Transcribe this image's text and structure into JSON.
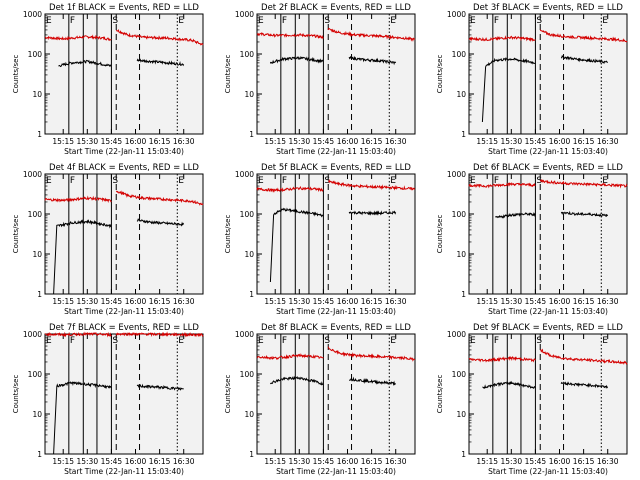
{
  "start_time_label": "Start Time (22-Jan-11 15:03:40)",
  "ylabel": "Counts/sec",
  "colors": {
    "events": "#000000",
    "lld": "#d40000",
    "background": "#ffffff",
    "plot_bg": "#f2f2f2"
  },
  "chart_data": {
    "type": "line",
    "grid": false,
    "x_axis": {
      "unit": "time (HH:MM, 22-Jan-11)",
      "range": [
        "15:03:40",
        "16:42:00"
      ],
      "ticks": [
        "15:15",
        "15:30",
        "15:45",
        "16:00",
        "16:15",
        "16:30"
      ]
    },
    "y_axis": {
      "scale": "log",
      "range": [
        1,
        1000
      ],
      "ticks": [
        "1",
        "10",
        "100",
        "1000"
      ]
    },
    "event_markers": [
      {
        "label": "E",
        "time": "15:03:40",
        "style": "solid"
      },
      {
        "label": "F",
        "time": "15:18:30",
        "style": "solid"
      },
      {
        "label": "",
        "time": "15:27:30",
        "style": "solid"
      },
      {
        "label": "",
        "time": "15:36:00",
        "style": "solid"
      },
      {
        "label": "S",
        "time": "15:45:00",
        "style": "solid"
      },
      {
        "label": "",
        "time": "15:48:00",
        "style": "dashed"
      },
      {
        "label": "",
        "time": "16:02:30",
        "style": "dashed"
      },
      {
        "label": "E",
        "time": "16:26:00",
        "style": "dotted"
      }
    ],
    "panels": [
      {
        "title": "Det 1f BLACK = Events, RED = LLD",
        "series": [
          {
            "name": "LLD",
            "segments": [
              {
                "x": [
                  "15:03:40",
                  "15:15",
                  "15:30",
                  "15:40",
                  "15:45:00"
                ],
                "y": [
                  260,
                  240,
                  270,
                  250,
                  230
                ]
              },
              {
                "x": [
                  "15:48:00",
                  "15:55",
                  "16:05",
                  "16:20",
                  "16:35",
                  "16:42"
                ],
                "y": [
                  400,
                  300,
                  260,
                  250,
                  220,
                  170
                ]
              }
            ]
          },
          {
            "name": "Events",
            "segments": [
              {
                "x": [
                  "15:12",
                  "15:20",
                  "15:30",
                  "15:40",
                  "15:45:00"
                ],
                "y": [
                  50,
                  60,
                  65,
                  55,
                  50
                ]
              },
              {
                "x": [
                  "16:01",
                  "16:10",
                  "16:20",
                  "16:30"
                ],
                "y": [
                  70,
                  65,
                  60,
                  55
                ]
              }
            ]
          }
        ]
      },
      {
        "title": "Det 2f BLACK = Events, RED = LLD",
        "series": [
          {
            "name": "LLD",
            "segments": [
              {
                "x": [
                  "15:03:40",
                  "15:15",
                  "15:30",
                  "15:40",
                  "15:45:00"
                ],
                "y": [
                  320,
                  290,
                  300,
                  280,
                  260
                ]
              },
              {
                "x": [
                  "15:48:00",
                  "15:55",
                  "16:05",
                  "16:20",
                  "16:35",
                  "16:42"
                ],
                "y": [
                  420,
                  340,
                  300,
                  280,
                  250,
                  230
                ]
              }
            ]
          },
          {
            "name": "Events",
            "segments": [
              {
                "x": [
                  "15:12",
                  "15:20",
                  "15:30",
                  "15:40",
                  "15:45:00"
                ],
                "y": [
                  60,
                  75,
                  80,
                  70,
                  65
                ]
              },
              {
                "x": [
                  "16:01",
                  "16:10",
                  "16:20",
                  "16:30"
                ],
                "y": [
                  80,
                  72,
                  68,
                  60
                ]
              }
            ]
          }
        ]
      },
      {
        "title": "Det 3f BLACK = Events, RED = LLD",
        "series": [
          {
            "name": "LLD",
            "segments": [
              {
                "x": [
                  "15:03:40",
                  "15:15",
                  "15:30",
                  "15:40",
                  "15:45:00"
                ],
                "y": [
                  240,
                  230,
                  260,
                  240,
                  230
                ]
              },
              {
                "x": [
                  "15:48:00",
                  "15:55",
                  "16:05",
                  "16:20",
                  "16:35",
                  "16:42"
                ],
                "y": [
                  380,
                  300,
                  270,
                  250,
                  230,
                  210
                ]
              }
            ]
          },
          {
            "name": "Events",
            "segments": [
              {
                "x": [
                  "15:12",
                  "15:14",
                  "15:20",
                  "15:30",
                  "15:40",
                  "15:45:00"
                ],
                "y": [
                  2,
                  50,
                  70,
                  75,
                  65,
                  60
                ]
              },
              {
                "x": [
                  "16:01",
                  "16:10",
                  "16:20",
                  "16:30"
                ],
                "y": [
                  85,
                  75,
                  68,
                  62
                ]
              }
            ]
          }
        ]
      },
      {
        "title": "Det 4f BLACK = Events, RED = LLD",
        "series": [
          {
            "name": "LLD",
            "segments": [
              {
                "x": [
                  "15:03:40",
                  "15:15",
                  "15:30",
                  "15:40",
                  "15:45:00"
                ],
                "y": [
                  230,
                  220,
                  250,
                  230,
                  210
                ]
              },
              {
                "x": [
                  "15:48:00",
                  "15:55",
                  "16:05",
                  "16:20",
                  "16:35",
                  "16:42"
                ],
                "y": [
                  380,
                  290,
                  250,
                  230,
                  210,
                  170
                ]
              }
            ]
          },
          {
            "name": "Events",
            "segments": [
              {
                "x": [
                  "15:09",
                  "15:11",
                  "15:20",
                  "15:30",
                  "15:40",
                  "15:45:00"
                ],
                "y": [
                  1,
                  50,
                  60,
                  65,
                  55,
                  50
                ]
              },
              {
                "x": [
                  "16:01",
                  "16:10",
                  "16:20",
                  "16:30"
                ],
                "y": [
                  70,
                  62,
                  58,
                  55
                ]
              }
            ]
          }
        ]
      },
      {
        "title": "Det 5f BLACK = Events, RED = LLD",
        "series": [
          {
            "name": "LLD",
            "segments": [
              {
                "x": [
                  "15:03:40",
                  "15:15",
                  "15:30",
                  "15:40",
                  "15:45:00"
                ],
                "y": [
                  420,
                  390,
                  440,
                  420,
                  400
                ]
              },
              {
                "x": [
                  "15:48:00",
                  "15:55",
                  "16:05",
                  "16:20",
                  "16:35",
                  "16:42"
                ],
                "y": [
                  650,
                  560,
                  500,
                  470,
                  440,
                  420
                ]
              }
            ]
          },
          {
            "name": "Events",
            "segments": [
              {
                "x": [
                  "15:12",
                  "15:14",
                  "15:20",
                  "15:30",
                  "15:40",
                  "15:45:00"
                ],
                "y": [
                  2,
                  100,
                  130,
                  115,
                  100,
                  90
                ]
              },
              {
                "x": [
                  "16:01",
                  "16:10",
                  "16:20",
                  "16:30"
                ],
                "y": [
                  110,
                  105,
                  105,
                  110
                ]
              }
            ]
          }
        ]
      },
      {
        "title": "Det 6f BLACK = Events, RED = LLD",
        "series": [
          {
            "name": "LLD",
            "segments": [
              {
                "x": [
                  "15:03:40",
                  "15:15",
                  "15:30",
                  "15:40",
                  "15:45:00"
                ],
                "y": [
                  520,
                  500,
                  560,
                  540,
                  520
                ]
              },
              {
                "x": [
                  "15:48:00",
                  "15:55",
                  "16:05",
                  "16:20",
                  "16:35",
                  "16:42"
                ],
                "y": [
                  680,
                  620,
                  580,
                  550,
                  520,
                  500
                ]
              }
            ]
          },
          {
            "name": "Events",
            "segments": [
              {
                "x": [
                  "15:20",
                  "15:30",
                  "15:40",
                  "15:45:00"
                ],
                "y": [
                  80,
                  95,
                  100,
                  95
                ]
              },
              {
                "x": [
                  "16:01",
                  "16:10",
                  "16:20",
                  "16:30"
                ],
                "y": [
                  110,
                  100,
                  98,
                  90
                ]
              }
            ]
          }
        ]
      },
      {
        "title": "Det 7f BLACK = Events, RED = LLD",
        "series": [
          {
            "name": "LLD",
            "segments": [
              {
                "x": [
                  "15:03:40",
                  "15:15",
                  "15:30",
                  "15:40",
                  "15:45:00"
                ],
                "y": [
                  1000,
                  960,
                  1000,
                  980,
                  950
                ]
              },
              {
                "x": [
                  "15:48:00",
                  "15:55",
                  "16:05",
                  "16:20",
                  "16:35",
                  "16:42"
                ],
                "y": [
                  1000,
                  1000,
                  990,
                  980,
                  960,
                  950
                ]
              }
            ]
          },
          {
            "name": "Events",
            "segments": [
              {
                "x": [
                  "15:09",
                  "15:11",
                  "15:20",
                  "15:30",
                  "15:40",
                  "15:45:00"
                ],
                "y": [
                  1,
                  50,
                  60,
                  55,
                  50,
                  45
                ]
              },
              {
                "x": [
                  "16:01",
                  "16:10",
                  "16:20",
                  "16:30"
                ],
                "y": [
                  50,
                  48,
                  45,
                  42
                ]
              }
            ]
          }
        ]
      },
      {
        "title": "Det 8f BLACK = Events, RED = LLD",
        "series": [
          {
            "name": "LLD",
            "segments": [
              {
                "x": [
                  "15:03:40",
                  "15:15",
                  "15:30",
                  "15:40",
                  "15:45:00"
                ],
                "y": [
                  270,
                  250,
                  290,
                  270,
                  250
                ]
              },
              {
                "x": [
                  "15:48:00",
                  "15:55",
                  "16:05",
                  "16:20",
                  "16:35",
                  "16:42"
                ],
                "y": [
                  450,
                  330,
                  290,
                  270,
                  250,
                  230
                ]
              }
            ]
          },
          {
            "name": "Events",
            "segments": [
              {
                "x": [
                  "15:12",
                  "15:20",
                  "15:30",
                  "15:40",
                  "15:45:00"
                ],
                "y": [
                  60,
                  75,
                  80,
                  65,
                  55
                ]
              },
              {
                "x": [
                  "16:01",
                  "16:10",
                  "16:20",
                  "16:30"
                ],
                "y": [
                  75,
                  68,
                  62,
                  58
                ]
              }
            ]
          }
        ]
      },
      {
        "title": "Det 9f BLACK = Events, RED = LLD",
        "series": [
          {
            "name": "LLD",
            "segments": [
              {
                "x": [
                  "15:03:40",
                  "15:15",
                  "15:30",
                  "15:40",
                  "15:45:00"
                ],
                "y": [
                  230,
                  220,
                  250,
                  230,
                  220
                ]
              },
              {
                "x": [
                  "15:48:00",
                  "15:55",
                  "16:05",
                  "16:20",
                  "16:35",
                  "16:42"
                ],
                "y": [
                  400,
                  280,
                  240,
                  220,
                  200,
                  190
                ]
              }
            ]
          },
          {
            "name": "Events",
            "segments": [
              {
                "x": [
                  "15:12",
                  "15:20",
                  "15:30",
                  "15:40",
                  "15:45:00"
                ],
                "y": [
                  45,
                  55,
                  60,
                  50,
                  45
                ]
              },
              {
                "x": [
                  "16:01",
                  "16:10",
                  "16:20",
                  "16:30"
                ],
                "y": [
                  60,
                  55,
                  52,
                  48
                ]
              }
            ]
          }
        ]
      }
    ]
  }
}
